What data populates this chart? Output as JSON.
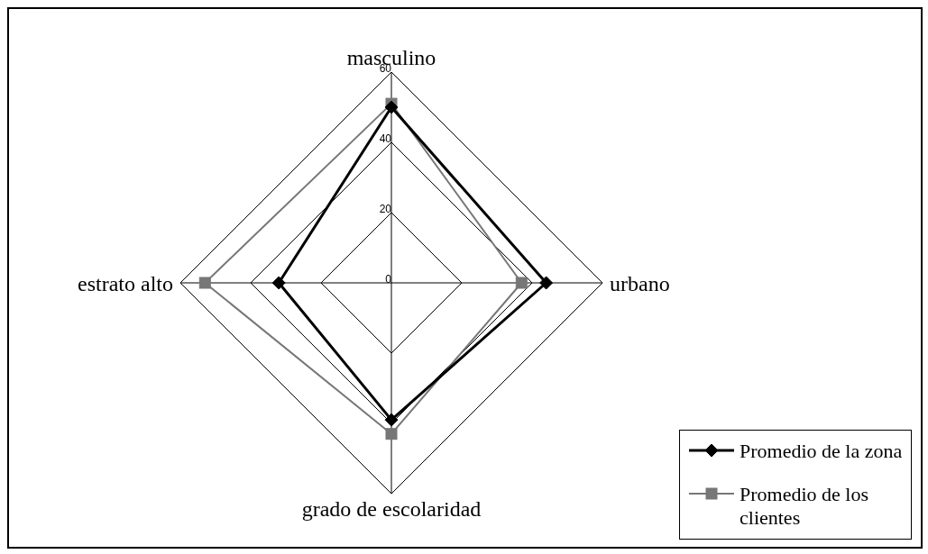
{
  "chart_data": {
    "type": "radar",
    "categories": [
      "masculino",
      "urbano",
      "grado de escolaridad",
      "estrato alto"
    ],
    "series": [
      {
        "name": "Promedio de la zona",
        "color": "#000000",
        "marker": "diamond",
        "values": [
          50,
          44,
          39,
          32
        ]
      },
      {
        "name": "Promedio de los clientes",
        "color": "#777777",
        "marker": "square",
        "values": [
          51,
          37,
          43,
          53
        ]
      }
    ],
    "ylim": [
      0,
      60
    ],
    "yticks": [
      0,
      20,
      40,
      60
    ],
    "grid": true,
    "legend": "right"
  }
}
